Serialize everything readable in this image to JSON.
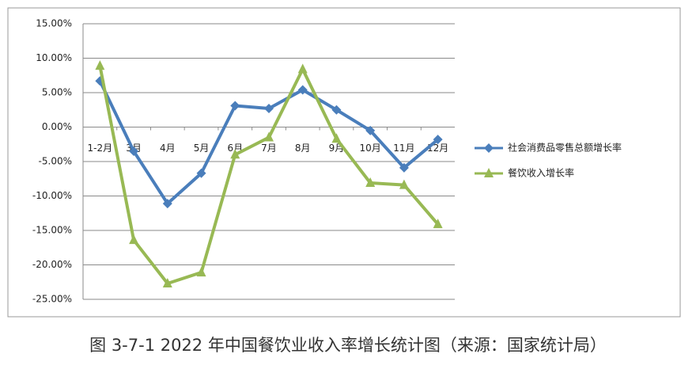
{
  "chart_data": {
    "type": "line",
    "caption": "图 3-7-1  2022 年中国餐饮业收入率增长统计图（来源：国家统计局）",
    "categories": [
      "1-2月",
      "3月",
      "4月",
      "5月",
      "6月",
      "7月",
      "8月",
      "9月",
      "10月",
      "11月",
      "12月"
    ],
    "series": [
      {
        "name": "社会消费品零售总额增长率",
        "color": "#4a7ebb",
        "marker": "diamond",
        "values": [
          6.7,
          -3.5,
          -11.1,
          -6.7,
          3.1,
          2.7,
          5.4,
          2.5,
          -0.5,
          -5.9,
          -1.8
        ]
      },
      {
        "name": "餐饮收入增长率",
        "color": "#98b954",
        "marker": "triangle",
        "values": [
          8.9,
          -16.4,
          -22.7,
          -21.1,
          -4.0,
          -1.5,
          8.4,
          -1.7,
          -8.1,
          -8.4,
          -14.1
        ]
      }
    ],
    "ylim": [
      -25,
      15
    ],
    "yticks": [
      {
        "value": -25,
        "label": "-25.00%"
      },
      {
        "value": -20,
        "label": "-20.00%"
      },
      {
        "value": -15,
        "label": "-15.00%"
      },
      {
        "value": -10,
        "label": "-10.00%"
      },
      {
        "value": -5,
        "label": "-5.00%"
      },
      {
        "value": 0,
        "label": "0.00%"
      },
      {
        "value": 5,
        "label": "5.00%"
      },
      {
        "value": 10,
        "label": "10.00%"
      },
      {
        "value": 15,
        "label": "15.00%"
      }
    ],
    "grid": true,
    "legend": "right"
  }
}
